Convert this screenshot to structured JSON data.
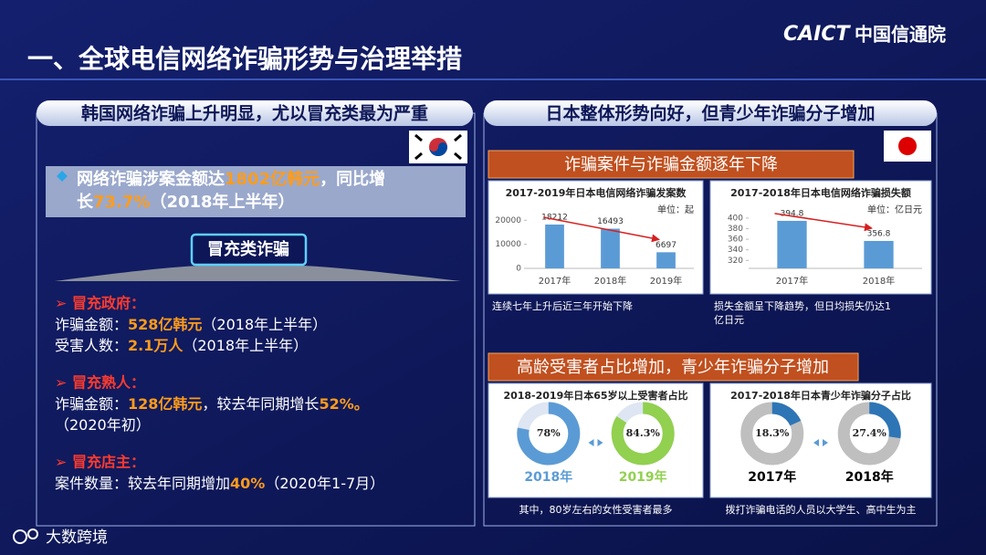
{
  "title": "一、全球电信网络诈骗形势与治理举措",
  "logo": {
    "brand": "CAICT",
    "name": "中国信通院"
  },
  "korea": {
    "header": "韩国网络诈骗上升明显，尤以冒充类最为严重",
    "highlight": [
      [
        "网络诈骗涉案金额达",
        "1802亿韩元",
        "，同比增"
      ],
      [
        "长",
        "73.7%",
        "（2018年上半年）"
      ]
    ],
    "badge": "冒充类诈骗",
    "sections": [
      {
        "heading": "➢ 冒充政府：",
        "lines": [
          [
            "诈骗金额：",
            "528亿韩元",
            "（2018年上半年）"
          ],
          [
            "受害人数：",
            "2.1万人",
            "（2018年上半年）"
          ]
        ]
      },
      {
        "heading": "➢ 冒充熟人：",
        "lines": [
          [
            "诈骗金额：",
            "128亿韩元",
            "，较去年同期增长",
            "52%。"
          ],
          [
            "（2020年初）"
          ]
        ]
      },
      {
        "heading": "➢ 冒充店主：",
        "lines": [
          [
            "案件数量：较去年同期增加",
            "40%",
            "（2020年1-7月）"
          ]
        ]
      }
    ]
  },
  "japan": {
    "header": "日本整体形势向好，但青少年诈骗分子增加",
    "subheadings": [
      "诈骗案件与诈骗金额逐年下降",
      "高龄受害者占比增加，青少年诈骗分子增加"
    ],
    "charts": [
      {
        "type": "bar",
        "title": "2017-2019年日本电信网络诈骗发案数",
        "unit": "单位：起",
        "categories": [
          "2017年",
          "2018年",
          "2019年"
        ],
        "values": [
          18212,
          16493,
          6697
        ],
        "ylim": [
          0,
          22000
        ],
        "yticks": [
          0,
          10000,
          20000
        ],
        "color": "#5b9bd5",
        "caption": [
          "连续七年上升后近三年开始下降"
        ]
      },
      {
        "type": "bar",
        "title": "2017-2018年日本电信网络诈骗损失额",
        "unit": "单位：亿日元",
        "categories": [
          "2017年",
          "2018年"
        ],
        "values": [
          394.8,
          356.8
        ],
        "ylim": [
          305,
          405
        ],
        "yticks": [
          320,
          340,
          360,
          380,
          400
        ],
        "color": "#5b9bd5",
        "caption": [
          "损失金额呈下降趋势，但日均损失仍达1",
          "亿日元"
        ]
      },
      {
        "type": "donut",
        "title": "2018-2019年日本65岁以上受害者占比",
        "categories": [
          "2018年",
          "2019年"
        ],
        "values": [
          78,
          84.3
        ],
        "value_labels": [
          "78%",
          "84.3%"
        ],
        "colors": [
          "#5b9bd5",
          "#92d050"
        ],
        "label_colors": [
          "#5b9bd5",
          "#92d050"
        ],
        "track": "#dde6f2",
        "caption": [
          "其中，80岁左右的女性受害者最多"
        ]
      },
      {
        "type": "donut",
        "title": "2017-2018年日本青少年诈骗分子占比",
        "categories": [
          "2017年",
          "2018年"
        ],
        "values": [
          18.3,
          27.4
        ],
        "value_labels": [
          "18.3%",
          "27.4%"
        ],
        "colors": [
          "#2e75b6",
          "#2e75b6"
        ],
        "label_colors": [
          "#000000",
          "#000000"
        ],
        "track": "#bfbfbf",
        "caption": [
          "拨打诈骗电话的人员以大学生、高中生为主"
        ]
      }
    ]
  },
  "watermark": "大数跨境"
}
